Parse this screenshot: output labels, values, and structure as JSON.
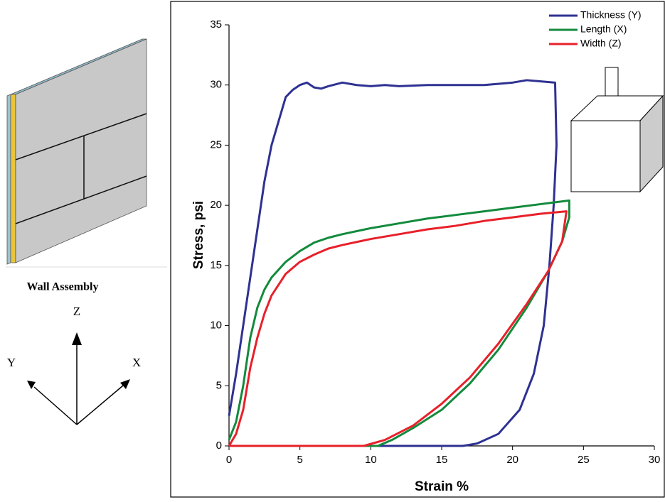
{
  "diagram": {
    "caption": "Wall Assembly",
    "axes": {
      "z": "Z",
      "y": "Y",
      "x": "X"
    }
  },
  "chart_data": {
    "type": "line",
    "xlabel": "Strain %",
    "ylabel": "Stress, psi",
    "xlim": [
      0,
      30
    ],
    "xticks": [
      0,
      5,
      10,
      15,
      20,
      25,
      30
    ],
    "ylim": [
      0,
      35
    ],
    "yticks": [
      0,
      5,
      10,
      15,
      20,
      25,
      30,
      35
    ],
    "grid": false,
    "legend": "upper right",
    "series": [
      {
        "name": "Thickness (Y)",
        "color": "#2e3192",
        "x": [
          0,
          0.5,
          1,
          1.5,
          2,
          2.5,
          3,
          3.5,
          4,
          4.5,
          5,
          5.5,
          6,
          6.5,
          7,
          8,
          9,
          10,
          11,
          12,
          14,
          16,
          18,
          20,
          21,
          22,
          23,
          23.1,
          22.9,
          22.6,
          22.2,
          21.5,
          20.5,
          19,
          17.5,
          16.5,
          10,
          0
        ],
        "values": [
          2.5,
          6,
          10,
          14,
          18,
          22,
          25,
          27,
          29,
          29.6,
          30,
          30.2,
          29.8,
          29.7,
          29.9,
          30.2,
          30,
          29.9,
          30,
          29.9,
          30,
          30,
          30,
          30.2,
          30.4,
          30.3,
          30.2,
          25,
          20,
          15,
          10,
          6,
          3,
          1,
          0.2,
          0,
          0,
          0
        ]
      },
      {
        "name": "Length (X)",
        "color": "#138a3c",
        "x": [
          0,
          0.5,
          1,
          1.5,
          2,
          2.5,
          3,
          4,
          5,
          6,
          7,
          8,
          10,
          12,
          14,
          16,
          18,
          20,
          22,
          24,
          24,
          23.5,
          22.5,
          21,
          19,
          17,
          15,
          13,
          11.5,
          10.5,
          0
        ],
        "values": [
          0.5,
          2,
          5,
          9,
          11.5,
          13,
          14,
          15.3,
          16.2,
          16.9,
          17.3,
          17.6,
          18.1,
          18.5,
          18.9,
          19.2,
          19.5,
          19.8,
          20.1,
          20.4,
          19,
          17,
          14.5,
          11.5,
          8,
          5.2,
          3,
          1.5,
          0.5,
          0,
          0
        ]
      },
      {
        "name": "Width (Z)",
        "color": "#e8202a",
        "x": [
          0,
          0.5,
          1,
          1.5,
          2,
          2.5,
          3,
          4,
          5,
          6,
          7,
          8,
          10,
          12,
          14,
          16,
          18,
          20,
          22,
          23.8,
          23.5,
          22.5,
          21,
          19,
          17,
          15,
          13,
          11,
          9.5,
          0
        ],
        "values": [
          0,
          1,
          3,
          6.5,
          9,
          11,
          12.5,
          14.3,
          15.3,
          15.9,
          16.4,
          16.7,
          17.2,
          17.6,
          18,
          18.3,
          18.7,
          19,
          19.3,
          19.5,
          17,
          14.5,
          11.8,
          8.5,
          5.7,
          3.5,
          1.7,
          0.5,
          0,
          0
        ]
      }
    ]
  }
}
